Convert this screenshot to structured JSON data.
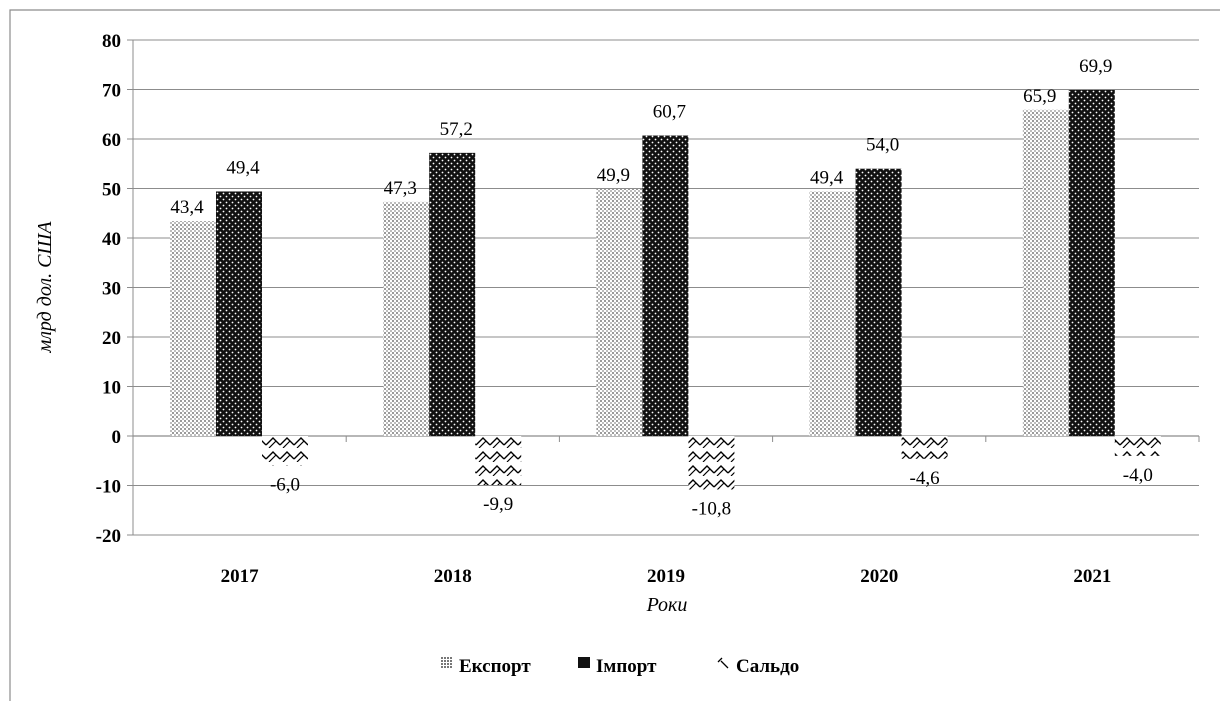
{
  "chart_data": {
    "type": "bar",
    "categories": [
      "2017",
      "2018",
      "2019",
      "2020",
      "2021"
    ],
    "series": [
      {
        "name": "Експорт",
        "values": [
          43.4,
          47.3,
          49.9,
          49.4,
          65.9
        ],
        "labels": [
          "43,4",
          "47,3",
          "49,9",
          "49,4",
          "65,9"
        ],
        "pattern": "fine-dots",
        "color": "#c8c8c8"
      },
      {
        "name": "Імпорт",
        "values": [
          49.4,
          57.2,
          60.7,
          54.0,
          69.9
        ],
        "labels": [
          "49,4",
          "57,2",
          "60,7",
          "54,0",
          "69,9"
        ],
        "pattern": "dark-dots",
        "color": "#111111"
      },
      {
        "name": "Сальдо",
        "values": [
          -6.0,
          -9.9,
          -10.8,
          -4.6,
          -4.0
        ],
        "labels": [
          "-6,0",
          "-9,9",
          "-10,8",
          "-4,6",
          "-4,0"
        ],
        "pattern": "zigzag",
        "color": "#000000"
      }
    ],
    "title": "",
    "xlabel": "Роки",
    "ylabel": "млрд дол. США",
    "ylim": [
      -20,
      80
    ],
    "yticks": [
      80,
      70,
      60,
      50,
      40,
      30,
      20,
      10,
      0,
      -10,
      -20
    ],
    "grid": true,
    "legend_position": "bottom"
  }
}
